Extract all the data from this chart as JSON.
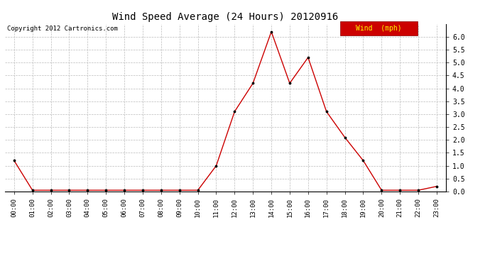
{
  "title": "Wind Speed Average (24 Hours) 20120916",
  "copyright": "Copyright 2012 Cartronics.com",
  "legend_label": "Wind  (mph)",
  "legend_bg": "#cc0000",
  "legend_text_color": "#ffff00",
  "line_color": "#cc0000",
  "marker_color": "#000000",
  "background_color": "#ffffff",
  "grid_color": "#bbbbbb",
  "ylim": [
    0.0,
    6.5
  ],
  "yticks": [
    0.0,
    0.5,
    1.0,
    1.5,
    2.0,
    2.5,
    3.0,
    3.5,
    4.0,
    4.5,
    5.0,
    5.5,
    6.0
  ],
  "hours": [
    "00:00",
    "01:00",
    "02:00",
    "03:00",
    "04:00",
    "05:00",
    "06:00",
    "07:00",
    "08:00",
    "09:00",
    "10:00",
    "11:00",
    "12:00",
    "13:00",
    "14:00",
    "15:00",
    "16:00",
    "17:00",
    "18:00",
    "19:00",
    "20:00",
    "21:00",
    "22:00",
    "23:00"
  ],
  "wind_values": [
    1.2,
    0.05,
    0.05,
    0.05,
    0.05,
    0.05,
    0.05,
    0.05,
    0.05,
    0.05,
    0.05,
    1.0,
    3.1,
    4.2,
    6.2,
    4.2,
    5.2,
    3.1,
    2.1,
    1.2,
    0.05,
    0.05,
    0.05,
    0.2
  ]
}
